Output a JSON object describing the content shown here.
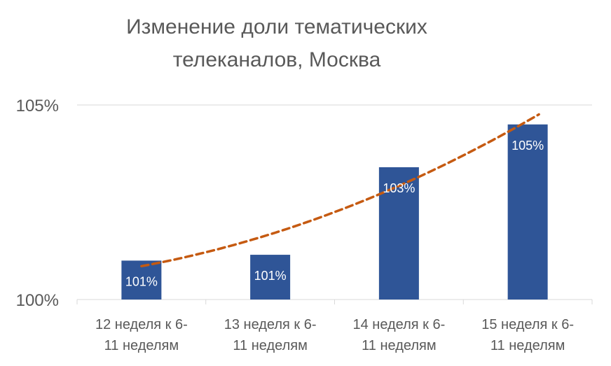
{
  "chart_data": {
    "type": "bar",
    "title_lines": [
      "Изменение доли тематических",
      "телеканалов, Москва"
    ],
    "categories": [
      [
        "12 неделя к 6-",
        "11 неделям"
      ],
      [
        "13 неделя к 6-",
        "11 неделям"
      ],
      [
        "14 неделя к 6-",
        "11 неделям"
      ],
      [
        "15 неделя к 6-",
        "11 неделям"
      ]
    ],
    "values": [
      101.0,
      101.15,
      103.4,
      104.5
    ],
    "data_labels": [
      "101%",
      "101%",
      "103%",
      "105%"
    ],
    "trendline": {
      "type": "polynomial",
      "values": [
        100.85,
        101.7,
        102.9,
        104.6
      ]
    },
    "yticks": [
      {
        "value": 100,
        "label": "100%"
      },
      {
        "value": 105,
        "label": "105%"
      }
    ],
    "ylim": [
      100,
      105
    ],
    "grid": true,
    "bar_color": "#2F5597",
    "trend_color": "#C55A11"
  }
}
